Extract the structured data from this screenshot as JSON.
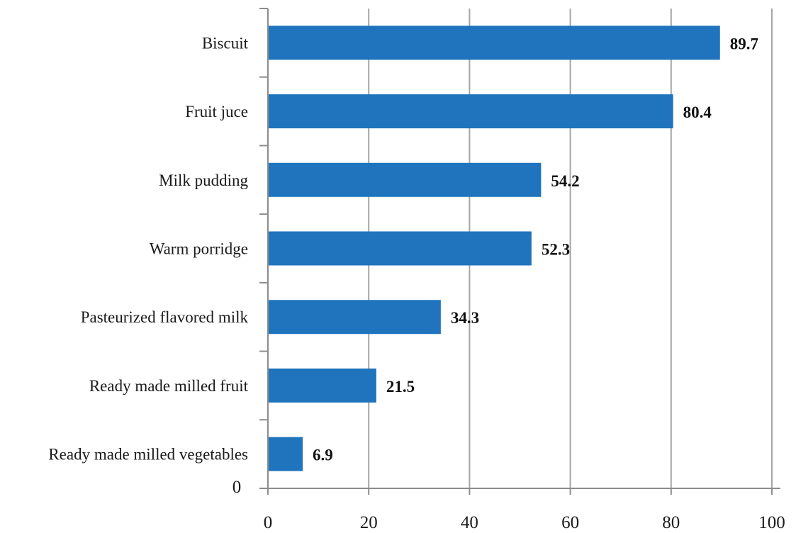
{
  "chart_data": {
    "type": "bar",
    "orientation": "horizontal",
    "categories": [
      "Biscuit",
      "Fruit juce",
      "Milk pudding",
      "Warm porridge",
      "Pasteurized flavored milk",
      "Ready made milled fruit",
      "Ready made milled vegetables"
    ],
    "values": [
      89.7,
      80.4,
      54.2,
      52.3,
      34.3,
      21.5,
      6.9
    ],
    "value_labels": [
      "89.7",
      "80.4",
      "54.2",
      "52.3",
      "34.3",
      "21.5",
      "6.9"
    ],
    "xlim": [
      0,
      100
    ],
    "x_ticks": [
      0,
      20,
      40,
      60,
      80,
      100
    ],
    "x_tick_labels": [
      "0",
      "20",
      "40",
      "60",
      "80",
      "100"
    ],
    "y_origin_label": "0",
    "title": "",
    "xlabel": "",
    "ylabel": "",
    "grid": "vertical",
    "legend": "none",
    "colors": {
      "bar": "#1f74bd",
      "grid": "#a6a6a6",
      "axis": "#8c8c8c",
      "text": "#1a1a1a"
    }
  }
}
